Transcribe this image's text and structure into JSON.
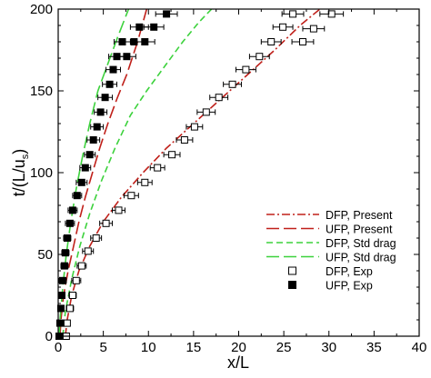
{
  "chart_data": {
    "type": "scatter",
    "title": "",
    "xlabel": "x/L",
    "ylabel_main": "t/(L/u",
    "ylabel_sub": "s",
    "ylabel_close": ")",
    "xlim": [
      0,
      40
    ],
    "ylim": [
      0,
      200
    ],
    "x_ticks": [
      "0",
      "5",
      "10",
      "15",
      "20",
      "25",
      "30",
      "35",
      "40"
    ],
    "y_ticks": [
      "0",
      "50",
      "100",
      "150",
      "200"
    ],
    "x_tick_values": [
      0,
      5,
      10,
      15,
      20,
      25,
      30,
      35,
      40
    ],
    "y_tick_values": [
      0,
      50,
      100,
      150,
      200
    ],
    "grid": false,
    "legend_position": "bottom-right",
    "colors": {
      "dfp_present": "#c0201a",
      "ufp_present": "#c0201a",
      "dfp_std": "#3dd23d",
      "ufp_std": "#3dd23d",
      "markers": "#000000"
    },
    "series": [
      {
        "name": "DFP, Present",
        "kind": "line",
        "style": "dashdot",
        "x": [
          0.8,
          1.0,
          1.5,
          2.3,
          3.5,
          5.0,
          7.0,
          9.4,
          12.0,
          15.0,
          18.0,
          21.0,
          24.0,
          26.8,
          29.0
        ],
        "y": [
          0,
          10,
          25,
          40,
          55,
          70,
          85,
          100,
          115,
          130,
          145,
          160,
          175,
          190,
          200
        ]
      },
      {
        "name": "UFP, Present",
        "kind": "line",
        "style": "longdash",
        "x": [
          0.2,
          0.3,
          0.6,
          1.1,
          1.7,
          2.3,
          3.0,
          3.8,
          4.6,
          5.5,
          6.5,
          7.6,
          8.8,
          9.8
        ],
        "y": [
          0,
          10,
          25,
          40,
          55,
          70,
          85,
          100,
          115,
          130,
          145,
          160,
          180,
          200
        ]
      },
      {
        "name": "DFP, Std drag",
        "kind": "line",
        "style": "dash",
        "x": [
          0.5,
          0.8,
          1.5,
          2.4,
          3.5,
          4.8,
          6.3,
          8.0,
          9.8,
          11.8,
          13.8,
          15.6,
          17.0
        ],
        "y": [
          0,
          15,
          35,
          55,
          75,
          95,
          115,
          135,
          150,
          165,
          180,
          192,
          200
        ]
      },
      {
        "name": "UFP, Std drag",
        "kind": "line",
        "style": "longdash",
        "x": [
          0.1,
          0.2,
          0.5,
          0.9,
          1.4,
          2.0,
          2.7,
          3.5,
          4.4,
          5.4,
          6.6,
          7.8
        ],
        "y": [
          0,
          10,
          30,
          50,
          70,
          90,
          110,
          130,
          150,
          165,
          183,
          200
        ]
      },
      {
        "name": "DFP, Exp",
        "kind": "marker",
        "marker": "open-square",
        "x": [
          0.9,
          1.0,
          1.3,
          1.6,
          2.0,
          2.6,
          3.3,
          4.2,
          5.3,
          6.7,
          8.1,
          9.6,
          11.0,
          12.6,
          14.0,
          15.1,
          16.4,
          17.8,
          19.3,
          20.8,
          22.3,
          23.6,
          24.9,
          26.0,
          27.1,
          28.3,
          30.3
        ],
        "y": [
          0,
          8,
          17,
          25,
          34,
          43,
          52,
          60,
          69,
          77,
          86,
          94,
          103,
          111,
          120,
          128,
          137,
          146,
          154,
          163,
          171,
          180,
          189,
          197,
          180,
          188,
          197
        ],
        "xerr": [
          0.3,
          0.3,
          0.4,
          0.4,
          0.5,
          0.5,
          0.6,
          0.6,
          0.7,
          0.7,
          0.8,
          0.8,
          0.8,
          0.9,
          0.9,
          0.9,
          1.0,
          1.0,
          1.0,
          1.1,
          1.1,
          1.1,
          1.1,
          1.2,
          1.2,
          1.2,
          1.3
        ]
      },
      {
        "name": "UFP, Exp",
        "kind": "marker",
        "marker": "filled-square",
        "x": [
          0.1,
          0.2,
          0.3,
          0.4,
          0.5,
          0.7,
          0.8,
          1.0,
          1.3,
          1.6,
          2.1,
          2.6,
          3.0,
          3.5,
          3.9,
          4.3,
          4.7,
          5.2,
          5.7,
          6.1,
          6.5,
          7.1,
          7.6,
          8.4,
          9.0,
          9.6,
          10.6,
          12.0
        ],
        "y": [
          0,
          8,
          17,
          25,
          34,
          43,
          51,
          60,
          69,
          77,
          86,
          94,
          103,
          111,
          120,
          128,
          137,
          146,
          154,
          163,
          171,
          180,
          171,
          180,
          189,
          180,
          189,
          197
        ],
        "xerr": [
          0.3,
          0.3,
          0.3,
          0.3,
          0.4,
          0.4,
          0.4,
          0.4,
          0.5,
          0.5,
          0.5,
          0.6,
          0.6,
          0.6,
          0.7,
          0.7,
          0.7,
          0.8,
          0.8,
          0.8,
          0.9,
          0.9,
          1.0,
          1.0,
          1.0,
          1.1,
          1.1,
          1.2
        ]
      }
    ]
  }
}
